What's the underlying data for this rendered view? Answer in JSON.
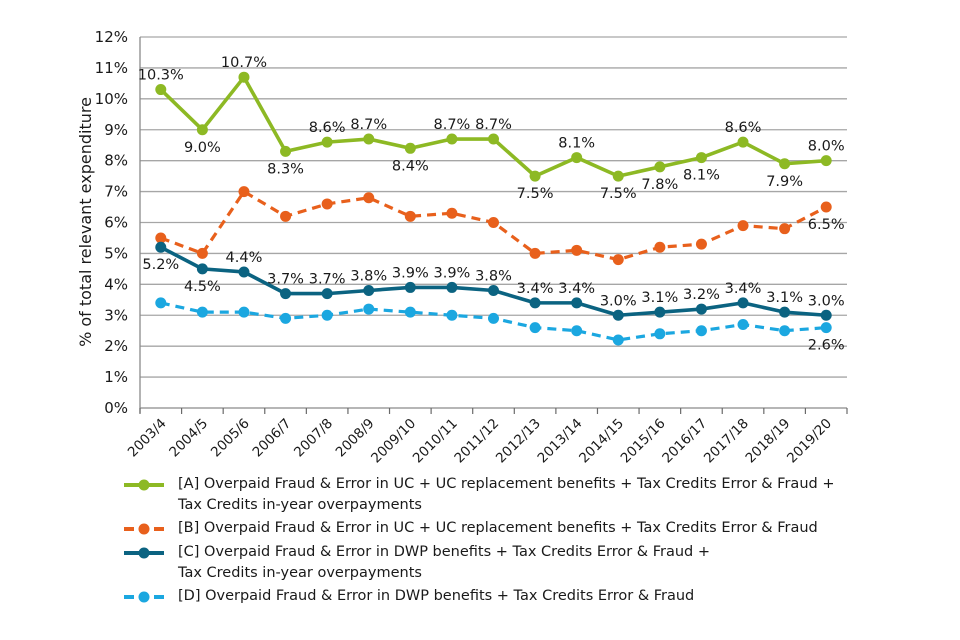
{
  "chart_data": {
    "type": "line",
    "title": "",
    "xlabel": "",
    "ylabel": "% of total relevant expenditure",
    "ylim": [
      0,
      12
    ],
    "yticks": [
      "0%",
      "1%",
      "2%",
      "3%",
      "4%",
      "5%",
      "6%",
      "7%",
      "8%",
      "9%",
      "10%",
      "11%",
      "12%"
    ],
    "grid": true,
    "legend_position": "bottom",
    "categories": [
      "2003/4",
      "2004/5",
      "2005/6",
      "2006/7",
      "2007/8",
      "2008/9",
      "2009/10",
      "2010/11",
      "2011/12",
      "2012/13",
      "2013/14",
      "2014/15",
      "2015/16",
      "2016/17",
      "2017/18",
      "2018/19",
      "2019/20"
    ],
    "series": [
      {
        "key": "A",
        "name": "[A] Overpaid Fraud & Error in UC + UC replacement benefits + Tax Credits Error & Fraud + Tax Credits in-year overpayments",
        "legend_lines": [
          "[A] Overpaid Fraud & Error in UC + UC replacement benefits + Tax Credits Error & Fraud +",
          "Tax Credits in-year overpayments"
        ],
        "color": "#8DB924",
        "style": "solid",
        "values": [
          10.3,
          9.0,
          10.7,
          8.3,
          8.6,
          8.7,
          8.4,
          8.7,
          8.7,
          7.5,
          8.1,
          7.5,
          7.8,
          8.1,
          8.6,
          7.9,
          8.0
        ],
        "labels": [
          "10.3%",
          "9.0%",
          "10.7%",
          "8.3%",
          "8.6%",
          "8.7%",
          "8.4%",
          "8.7%",
          "8.7%",
          "7.5%",
          "8.1%",
          "7.5%",
          "7.8%",
          "8.1%",
          "8.6%",
          "7.9%",
          "8.0%"
        ],
        "label_pos": [
          "above",
          "below",
          "above",
          "below",
          "above",
          "above",
          "below",
          "above",
          "above",
          "below",
          "above",
          "below",
          "below",
          "below",
          "above",
          "below",
          "above"
        ]
      },
      {
        "key": "B",
        "name": "[B] Overpaid Fraud & Error in UC + UC replacement benefits + Tax Credits Error & Fraud",
        "legend_lines": [
          "[B] Overpaid Fraud & Error in UC + UC replacement benefits + Tax Credits Error & Fraud"
        ],
        "color": "#E8601C",
        "style": "dashed",
        "values": [
          5.5,
          5.0,
          7.0,
          6.2,
          6.6,
          6.8,
          6.2,
          6.3,
          6.0,
          5.0,
          5.1,
          4.8,
          5.2,
          5.3,
          5.9,
          5.8,
          6.5
        ],
        "labels": [
          "",
          "",
          "",
          "",
          "",
          "",
          "",
          "",
          "",
          "",
          "",
          "",
          "",
          "",
          "",
          "",
          "6.5%"
        ],
        "label_pos": [
          "",
          "",
          "",
          "",
          "",
          "",
          "",
          "",
          "",
          "",
          "",
          "",
          "",
          "",
          "",
          "",
          "below"
        ]
      },
      {
        "key": "C",
        "name": "[C] Overpaid Fraud & Error in DWP benefits + Tax Credits Error & Fraud + Tax Credits in-year overpayments",
        "legend_lines": [
          "[C] Overpaid Fraud & Error in DWP benefits + Tax Credits Error & Fraud +",
          "Tax Credits in-year overpayments"
        ],
        "color": "#0B6381",
        "style": "solid",
        "values": [
          5.2,
          4.5,
          4.4,
          3.7,
          3.7,
          3.8,
          3.9,
          3.9,
          3.8,
          3.4,
          3.4,
          3.0,
          3.1,
          3.2,
          3.4,
          3.1,
          3.0
        ],
        "labels": [
          "5.2%",
          "4.5%",
          "4.4%",
          "3.7%",
          "3.7%",
          "3.8%",
          "3.9%",
          "3.9%",
          "3.8%",
          "3.4%",
          "3.4%",
          "3.0%",
          "3.1%",
          "3.2%",
          "3.4%",
          "3.1%",
          "3.0%"
        ],
        "label_pos": [
          "below",
          "below",
          "above",
          "above",
          "above",
          "above",
          "above",
          "above",
          "above",
          "above",
          "above",
          "above",
          "above",
          "above",
          "above",
          "above",
          "above"
        ]
      },
      {
        "key": "D",
        "name": "[D] Overpaid Fraud & Error in DWP benefits + Tax Credits Error & Fraud",
        "legend_lines": [
          "[D] Overpaid Fraud & Error in DWP benefits + Tax Credits Error & Fraud"
        ],
        "color": "#1BA7E0",
        "style": "dashed",
        "values": [
          3.4,
          3.1,
          3.1,
          2.9,
          3.0,
          3.2,
          3.1,
          3.0,
          2.9,
          2.6,
          2.5,
          2.2,
          2.4,
          2.5,
          2.7,
          2.5,
          2.6
        ],
        "labels": [
          "",
          "",
          "",
          "",
          "",
          "",
          "",
          "",
          "",
          "",
          "",
          "",
          "",
          "",
          "",
          "",
          "2.6%"
        ],
        "label_pos": [
          "",
          "",
          "",
          "",
          "",
          "",
          "",
          "",
          "",
          "",
          "",
          "",
          "",
          "",
          "",
          "",
          "below"
        ]
      }
    ]
  }
}
